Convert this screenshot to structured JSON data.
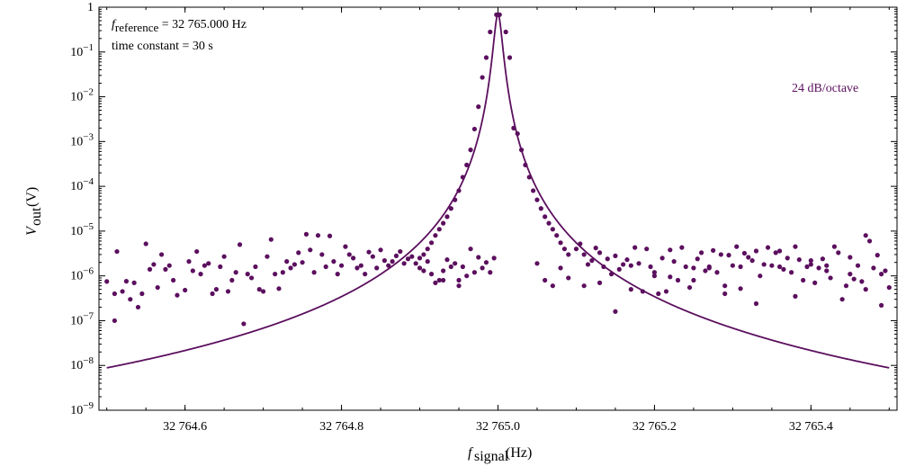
{
  "chart_data": {
    "type": "scatter",
    "yscale": "log",
    "xlim": [
      32764.49,
      32765.51
    ],
    "ylim": [
      1e-09,
      1
    ],
    "grid": false,
    "x_ticks": [
      {
        "value": 32764.6,
        "label": "32 764.6"
      },
      {
        "value": 32764.8,
        "label": "32 764.8"
      },
      {
        "value": 32765.0,
        "label": "32 765.0"
      },
      {
        "value": 32765.2,
        "label": "32 765.2"
      },
      {
        "value": 32765.4,
        "label": "32 765.4"
      }
    ],
    "y_ticks": [
      {
        "value": 1,
        "base": "1",
        "exp": ""
      },
      {
        "value": 0.1,
        "base": "10",
        "exp": "−1"
      },
      {
        "value": 0.01,
        "base": "10",
        "exp": "−2"
      },
      {
        "value": 0.001,
        "base": "10",
        "exp": "−3"
      },
      {
        "value": 0.0001,
        "base": "10",
        "exp": "−4"
      },
      {
        "value": 1e-05,
        "base": "10",
        "exp": "−5"
      },
      {
        "value": 1e-06,
        "base": "10",
        "exp": "−6"
      },
      {
        "value": 1e-07,
        "base": "10",
        "exp": "−7"
      },
      {
        "value": 1e-08,
        "base": "10",
        "exp": "−8"
      },
      {
        "value": 1e-09,
        "base": "10",
        "exp": "−9"
      }
    ],
    "xlabel": {
      "main": "f",
      "sub": "signal",
      "unit": "(Hz)"
    },
    "ylabel": {
      "main": "V",
      "sub": "out",
      "unit": "(V)"
    },
    "annotations": {
      "reference_main": "f",
      "reference_sub": "reference",
      "reference_value": " = 32 765.000 Hz",
      "time_constant": "time constant = 30 s",
      "curve_label": "24 dB/octave"
    },
    "color": "#5b0f5e",
    "series": [
      {
        "kind": "line",
        "f0": 32765.0,
        "peak": 0.7,
        "halfwidth": 0.0053,
        "order": 4,
        "x_range": [
          32764.5,
          32765.5
        ]
      },
      {
        "kind": "points",
        "points": [
          [
            32764.99,
            0.28
          ],
          [
            32764.985,
            0.075
          ],
          [
            32764.98,
            0.027
          ],
          [
            32764.975,
            0.006
          ],
          [
            32764.97,
            0.0019
          ],
          [
            32764.965,
            0.00065
          ],
          [
            32764.96,
            0.0003
          ],
          [
            32764.955,
            0.00016
          ],
          [
            32764.95,
            8e-05
          ],
          [
            32764.945,
            5e-05
          ],
          [
            32764.94,
            3.2e-05
          ],
          [
            32764.935,
            2.1e-05
          ],
          [
            32764.93,
            1.5e-05
          ],
          [
            32764.925,
            1.1e-05
          ],
          [
            32764.92,
            8e-06
          ],
          [
            32764.915,
            5.5e-06
          ],
          [
            32764.91,
            4e-06
          ],
          [
            32764.905,
            3e-06
          ],
          [
            32764.9,
            2.5e-06
          ],
          [
            32764.998,
            0.68
          ],
          [
            32765.002,
            0.68
          ],
          [
            32765.01,
            0.28
          ],
          [
            32765.015,
            0.075
          ],
          [
            32765.02,
            0.002
          ],
          [
            32765.025,
            0.0015
          ],
          [
            32765.03,
            0.00065
          ],
          [
            32765.035,
            0.0003
          ],
          [
            32765.04,
            0.00016
          ],
          [
            32765.045,
            8e-05
          ],
          [
            32765.05,
            5e-05
          ],
          [
            32765.055,
            3.2e-05
          ],
          [
            32765.06,
            2.1e-05
          ],
          [
            32765.065,
            1.5e-05
          ],
          [
            32765.07,
            1.1e-05
          ],
          [
            32765.075,
            8e-06
          ],
          [
            32765.08,
            5.5e-06
          ],
          [
            32765.085,
            4e-06
          ],
          [
            32765.09,
            3e-06
          ],
          [
            32764.5,
            7.5e-07
          ],
          [
            32764.51,
            4e-07
          ],
          [
            32764.51,
            1e-07
          ],
          [
            32764.513,
            3.5e-06
          ],
          [
            32764.52,
            4.5e-07
          ],
          [
            32764.525,
            7.6e-07
          ],
          [
            32764.53,
            3e-07
          ],
          [
            32764.535,
            7e-07
          ],
          [
            32764.54,
            2e-07
          ],
          [
            32764.545,
            4e-07
          ],
          [
            32764.55,
            5.2e-06
          ],
          [
            32764.555,
            1.4e-06
          ],
          [
            32764.56,
            1.8e-06
          ],
          [
            32764.565,
            5.5e-07
          ],
          [
            32764.57,
            3e-06
          ],
          [
            32764.575,
            1.4e-06
          ],
          [
            32764.58,
            1.7e-06
          ],
          [
            32764.585,
            8e-07
          ],
          [
            32764.59,
            3.7e-07
          ],
          [
            32764.6,
            4.8e-07
          ],
          [
            32764.605,
            2.1e-06
          ],
          [
            32764.61,
            1.3e-06
          ],
          [
            32764.615,
            3.5e-06
          ],
          [
            32764.62,
            1.1e-06
          ],
          [
            32764.625,
            1.7e-06
          ],
          [
            32764.63,
            1.9e-06
          ],
          [
            32764.635,
            4e-07
          ],
          [
            32764.64,
            5e-07
          ],
          [
            32764.645,
            1.6e-06
          ],
          [
            32764.65,
            2.7e-06
          ],
          [
            32764.655,
            4.5e-07
          ],
          [
            32764.66,
            8e-07
          ],
          [
            32764.665,
            1.2e-06
          ],
          [
            32764.67,
            5e-06
          ],
          [
            32764.675,
            8.5e-08
          ],
          [
            32764.68,
            1.1e-06
          ],
          [
            32764.685,
            9e-07
          ],
          [
            32764.69,
            1.6e-06
          ],
          [
            32764.695,
            5e-07
          ],
          [
            32764.7,
            4.5e-07
          ],
          [
            32764.705,
            2.7e-06
          ],
          [
            32764.71,
            6.5e-06
          ],
          [
            32764.715,
            1.1e-06
          ],
          [
            32764.72,
            5.2e-07
          ],
          [
            32764.725,
            1.2e-06
          ],
          [
            32764.73,
            2.1e-06
          ],
          [
            32764.735,
            1.5e-06
          ],
          [
            32764.74,
            1.8e-06
          ],
          [
            32764.745,
            3.3e-06
          ],
          [
            32764.75,
            2e-06
          ],
          [
            32764.755,
            8.5e-06
          ],
          [
            32764.76,
            3.8e-06
          ],
          [
            32764.765,
            1.2e-06
          ],
          [
            32764.77,
            8e-06
          ],
          [
            32764.775,
            3e-06
          ],
          [
            32764.78,
            1.6e-06
          ],
          [
            32764.785,
            7.8e-06
          ],
          [
            32764.79,
            2.1e-06
          ],
          [
            32764.795,
            1.1e-06
          ],
          [
            32764.8,
            1.7e-06
          ],
          [
            32764.805,
            4.5e-06
          ],
          [
            32764.81,
            3e-06
          ],
          [
            32764.815,
            2.5e-06
          ],
          [
            32764.82,
            1.5e-06
          ],
          [
            32764.825,
            1.7e-06
          ],
          [
            32764.83,
            1.1e-06
          ],
          [
            32764.835,
            3.4e-06
          ],
          [
            32764.84,
            2.7e-06
          ],
          [
            32764.845,
            1.5e-06
          ],
          [
            32764.85,
            3.8e-06
          ],
          [
            32764.855,
            2.2e-06
          ],
          [
            32764.86,
            1.7e-06
          ],
          [
            32764.865,
            2.1e-06
          ],
          [
            32764.87,
            2.8e-06
          ],
          [
            32764.875,
            3.5e-06
          ],
          [
            32764.88,
            1.9e-06
          ],
          [
            32764.885,
            2.4e-06
          ],
          [
            32764.89,
            2.7e-06
          ],
          [
            32764.895,
            1.9e-06
          ],
          [
            32764.9,
            1.5e-06
          ],
          [
            32764.905,
            1.3e-06
          ],
          [
            32764.91,
            2.1e-06
          ],
          [
            32764.915,
            1.1e-06
          ],
          [
            32764.92,
            7e-07
          ],
          [
            32764.925,
            8e-07
          ],
          [
            32764.93,
            1.3e-06
          ],
          [
            32764.935,
            2.3e-06
          ],
          [
            32764.94,
            1.6e-06
          ],
          [
            32764.945,
            1.9e-06
          ],
          [
            32764.95,
            8e-07
          ],
          [
            32764.955,
            1.6e-06
          ],
          [
            32764.96,
            1e-06
          ],
          [
            32764.965,
            4e-06
          ],
          [
            32764.97,
            1.2e-06
          ],
          [
            32764.975,
            2.6e-06
          ],
          [
            32764.98,
            1.5e-06
          ],
          [
            32764.985,
            2e-06
          ],
          [
            32764.99,
            1.2e-06
          ],
          [
            32764.995,
            2.5e-06
          ],
          [
            32765.1,
            4e-06
          ],
          [
            32765.105,
            5.2e-06
          ],
          [
            32765.11,
            3e-06
          ],
          [
            32765.115,
            1.8e-06
          ],
          [
            32765.12,
            2.2e-06
          ],
          [
            32765.125,
            4.2e-06
          ],
          [
            32765.13,
            3.3e-06
          ],
          [
            32765.135,
            1.6e-06
          ],
          [
            32765.14,
            2.4e-06
          ],
          [
            32765.145,
            1.1e-06
          ],
          [
            32765.15,
            2.8e-06
          ],
          [
            32765.155,
            1.4e-06
          ],
          [
            32765.16,
            1.8e-06
          ],
          [
            32765.165,
            2.3e-06
          ],
          [
            32765.17,
            1.7e-06
          ],
          [
            32765.175,
            4.3e-06
          ],
          [
            32765.18,
            1.9e-06
          ],
          [
            32765.185,
            4.5e-07
          ],
          [
            32765.19,
            4e-06
          ],
          [
            32765.195,
            1.6e-06
          ],
          [
            32765.2,
            1.2e-06
          ],
          [
            32765.205,
            4e-07
          ],
          [
            32765.21,
            2.5e-06
          ],
          [
            32765.215,
            4.5e-07
          ],
          [
            32765.22,
            3.8e-06
          ],
          [
            32765.225,
            2.1e-06
          ],
          [
            32765.23,
            8e-07
          ],
          [
            32765.235,
            4.3e-06
          ],
          [
            32765.24,
            1.6e-06
          ],
          [
            32765.245,
            5.5e-07
          ],
          [
            32765.25,
            1.5e-06
          ],
          [
            32765.255,
            2.4e-06
          ],
          [
            32765.26,
            3.3e-06
          ],
          [
            32765.265,
            1.3e-06
          ],
          [
            32765.27,
            1.6e-06
          ],
          [
            32765.275,
            3.7e-06
          ],
          [
            32765.28,
            1.2e-06
          ],
          [
            32765.285,
            3e-06
          ],
          [
            32765.29,
            4e-07
          ],
          [
            32765.295,
            2.9e-06
          ],
          [
            32765.3,
            1.7e-06
          ],
          [
            32765.305,
            4.5e-06
          ],
          [
            32765.31,
            1.6e-06
          ],
          [
            32765.315,
            3.2e-06
          ],
          [
            32765.32,
            2.6e-06
          ],
          [
            32765.325,
            2.2e-06
          ],
          [
            32765.33,
            3.6e-06
          ],
          [
            32765.335,
            1e-06
          ],
          [
            32765.34,
            1.8e-06
          ],
          [
            32765.345,
            4.3e-06
          ],
          [
            32765.35,
            1.7e-06
          ],
          [
            32765.355,
            3.3e-06
          ],
          [
            32765.36,
            3.6e-06
          ],
          [
            32765.365,
            1.4e-06
          ],
          [
            32765.37,
            2.5e-06
          ],
          [
            32765.375,
            1.2e-06
          ],
          [
            32765.38,
            4.5e-06
          ],
          [
            32765.385,
            2.3e-06
          ],
          [
            32765.39,
            8e-07
          ],
          [
            32765.395,
            1.6e-06
          ],
          [
            32765.4,
            1.8e-06
          ],
          [
            32765.405,
            7e-07
          ],
          [
            32765.41,
            1.5e-06
          ],
          [
            32765.415,
            2.4e-06
          ],
          [
            32765.42,
            1.3e-06
          ],
          [
            32765.425,
            9e-07
          ],
          [
            32765.43,
            4.5e-06
          ],
          [
            32765.435,
            3.3e-06
          ],
          [
            32765.44,
            3e-07
          ],
          [
            32765.445,
            6e-07
          ],
          [
            32765.45,
            1.1e-06
          ],
          [
            32765.455,
            8.5e-07
          ],
          [
            32765.46,
            1.7e-06
          ],
          [
            32765.465,
            7.5e-07
          ],
          [
            32765.47,
            8e-06
          ],
          [
            32765.475,
            6e-06
          ],
          [
            32765.48,
            1.5e-06
          ],
          [
            32765.485,
            2.9e-06
          ],
          [
            32765.49,
            1.1e-06
          ],
          [
            32765.495,
            1.3e-06
          ],
          [
            32765.0,
            0.68
          ],
          [
            32764.93,
            8e-07
          ],
          [
            32764.95,
            6e-07
          ],
          [
            32765.05,
            1.9e-06
          ],
          [
            32765.06,
            8e-07
          ],
          [
            32765.07,
            6e-07
          ],
          [
            32765.08,
            1.5e-06
          ],
          [
            32765.09,
            9e-07
          ],
          [
            32765.11,
            6e-07
          ],
          [
            32765.13,
            7e-07
          ],
          [
            32765.15,
            1.6e-07
          ],
          [
            32765.17,
            5e-07
          ],
          [
            32765.2,
            1e-06
          ],
          [
            32765.22,
            9.5e-07
          ],
          [
            32765.25,
            8e-07
          ],
          [
            32765.27,
            1.5e-06
          ],
          [
            32765.29,
            6e-07
          ],
          [
            32765.31,
            5.2e-07
          ],
          [
            32765.33,
            2.4e-07
          ],
          [
            32765.36,
            1.6e-06
          ],
          [
            32765.38,
            3.5e-07
          ],
          [
            32765.4,
            2.2e-06
          ],
          [
            32765.42,
            1.7e-06
          ],
          [
            32765.45,
            2.6e-06
          ],
          [
            32765.47,
            5e-07
          ],
          [
            32765.49,
            2.2e-07
          ],
          [
            32765.5,
            5.5e-07
          ]
        ]
      }
    ]
  }
}
